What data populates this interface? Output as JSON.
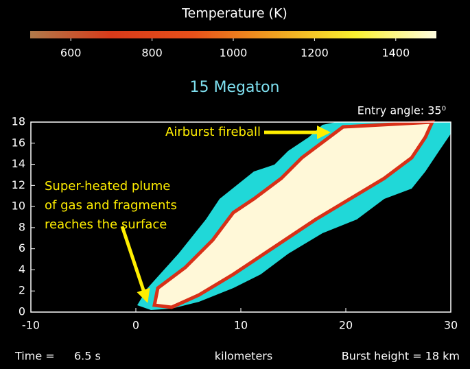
{
  "chart_data": {
    "type": "image",
    "title": "15 Megaton",
    "xlabel": "kilometers",
    "xlim": [
      -10,
      30
    ],
    "xticks": [
      -10,
      0,
      10,
      20,
      30
    ],
    "ylim": [
      0,
      18
    ],
    "yticks": [
      0,
      2,
      4,
      6,
      8,
      10,
      12,
      14,
      16,
      18
    ],
    "colorbar": {
      "title": "Temperature (K)",
      "lim": [
        500,
        1500
      ],
      "ticks": [
        600,
        800,
        1000,
        1200,
        1400
      ],
      "colors": [
        "#b07a4a",
        "#d83a1a",
        "#e8501a",
        "#f0a020",
        "#f8f030",
        "#fffde0"
      ]
    },
    "entry_angle": "Entry angle: 35⁰",
    "annotations": {
      "fireball": "Airburst fireball",
      "plume": [
        "Super-heated plume",
        "of gas and fragments",
        "reaches the surface"
      ]
    },
    "footer": {
      "time_label": "Time =",
      "time_value": "6.5 s",
      "burst_height": "Burst height = 18 km"
    }
  }
}
